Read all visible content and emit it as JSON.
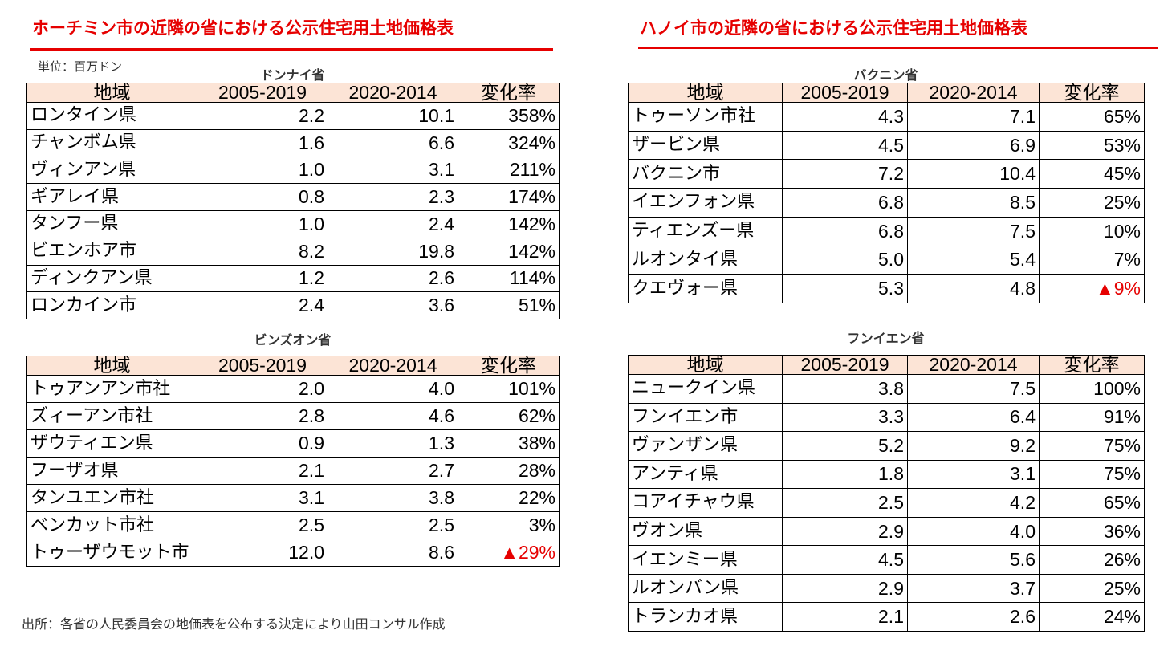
{
  "left_title": "ホーチミン市の近隣の省における公示住宅用土地価格表",
  "right_title": "ハノイ市の近隣の省における公示住宅用土地価格表",
  "unit": "単位：百万ドン",
  "source": "出所：各省の人民委員会の地価表を公布する決定により山田コンサル作成",
  "accent_color": "#e60000",
  "header_fill": "#fce4d6",
  "headers": [
    "地域",
    "2005-2019",
    "2020-2014",
    "変化率"
  ],
  "tables": {
    "dongnai": {
      "caption": "ドンナイ省",
      "rows": [
        [
          "ロンタイン県",
          "2.2",
          "10.1",
          "358%"
        ],
        [
          "チャンボム県",
          "1.6",
          "6.6",
          "324%"
        ],
        [
          "ヴィンアン県",
          "1.0",
          "3.1",
          "211%"
        ],
        [
          "ギアレイ県",
          "0.8",
          "2.3",
          "174%"
        ],
        [
          "タンフー県",
          "1.0",
          "2.4",
          "142%"
        ],
        [
          "ビエンホア市",
          "8.2",
          "19.8",
          "142%"
        ],
        [
          "ディンクアン県",
          "1.2",
          "2.6",
          "114%"
        ],
        [
          "ロンカイン市",
          "2.4",
          "3.6",
          "51%"
        ]
      ]
    },
    "binhduong": {
      "caption": "ビンズオン省",
      "rows": [
        [
          "トゥアンアン市社",
          "2.0",
          "4.0",
          "101%"
        ],
        [
          "ズィーアン市社",
          "2.8",
          "4.6",
          "62%"
        ],
        [
          "ザウティエン県",
          "0.9",
          "1.3",
          "38%"
        ],
        [
          "フーザオ県",
          "2.1",
          "2.7",
          "28%"
        ],
        [
          "タンユエン市社",
          "3.1",
          "3.8",
          "22%"
        ],
        [
          "ベンカット市社",
          "2.5",
          "2.5",
          "3%"
        ],
        [
          "トゥーザウモット市",
          "12.0",
          "8.6",
          "▲29%"
        ]
      ]
    },
    "bacninh": {
      "caption": "バクニン省",
      "rows": [
        [
          "トゥーソン市社",
          "4.3",
          "7.1",
          "65%"
        ],
        [
          "ザービン県",
          "4.5",
          "6.9",
          "53%"
        ],
        [
          "バクニン市",
          "7.2",
          "10.4",
          "45%"
        ],
        [
          "イエンフォン県",
          "6.8",
          "8.5",
          "25%"
        ],
        [
          "ティエンズー県",
          "6.8",
          "7.5",
          "10%"
        ],
        [
          "ルオンタイ県",
          "5.0",
          "5.4",
          "7%"
        ],
        [
          "クエヴォー県",
          "5.3",
          "4.8",
          "▲9%"
        ]
      ]
    },
    "hungyen": {
      "caption": "フンイエン省",
      "rows": [
        [
          "ニュークイン県",
          "3.8",
          "7.5",
          "100%"
        ],
        [
          "フンイエン市",
          "3.3",
          "6.4",
          "91%"
        ],
        [
          "ヴァンザン県",
          "5.2",
          "9.2",
          "75%"
        ],
        [
          "アンティ県",
          "1.8",
          "3.1",
          "75%"
        ],
        [
          "コアイチャウ県",
          "2.5",
          "4.2",
          "65%"
        ],
        [
          "ヴオン県",
          "2.9",
          "4.0",
          "36%"
        ],
        [
          "イエンミー県",
          "4.5",
          "5.6",
          "26%"
        ],
        [
          "ルオンバン県",
          "2.9",
          "3.7",
          "25%"
        ],
        [
          "トランカオ県",
          "2.1",
          "2.6",
          "24%"
        ]
      ]
    }
  }
}
